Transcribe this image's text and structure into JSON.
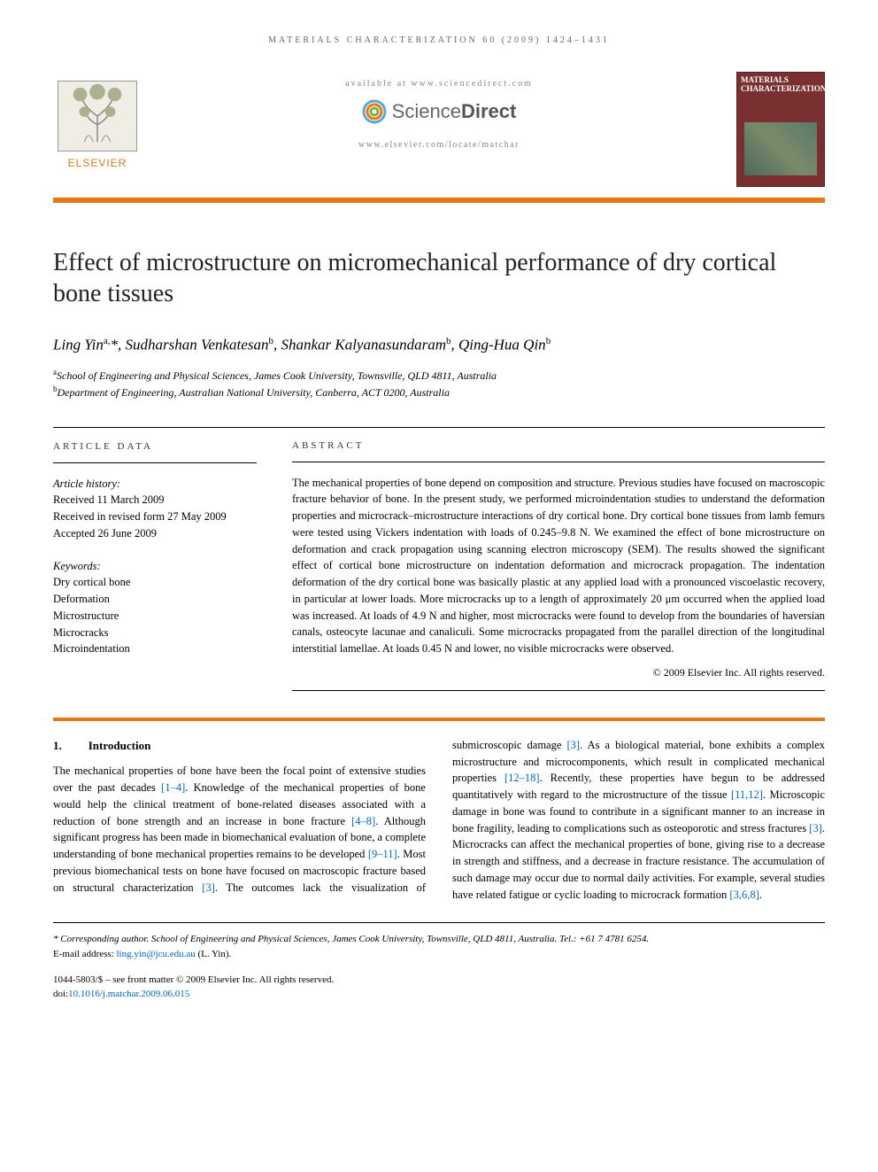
{
  "running_head": "MATERIALS CHARACTERIZATION 60 (2009) 1424–1431",
  "masthead": {
    "available_at": "available at www.sciencedirect.com",
    "sd_brand_light": "Science",
    "sd_brand_bold": "Direct",
    "locate": "www.elsevier.com/locate/matchar",
    "publisher": "ELSEVIER",
    "journal_cover_title": "MATERIALS CHARACTERIZATION"
  },
  "colors": {
    "accent": "#e67817",
    "link": "#0066cc",
    "cover_bg": "#7a3030"
  },
  "article": {
    "title": "Effect of microstructure on micromechanical performance of dry cortical bone tissues",
    "authors_html": "Ling Yin<sup>a,</sup>*, Sudharshan Venkatesan<sup>b</sup>, Shankar Kalyanasundaram<sup>b</sup>, Qing-Hua Qin<sup>b</sup>",
    "affiliations": [
      {
        "sup": "a",
        "text": "School of Engineering and Physical Sciences, James Cook University, Townsville, QLD 4811, Australia"
      },
      {
        "sup": "b",
        "text": "Department of Engineering, Australian National University, Canberra, ACT 0200, Australia"
      }
    ]
  },
  "article_data": {
    "head": "ARTICLE DATA",
    "history_label": "Article history:",
    "received": "Received 11 March 2009",
    "revised": "Received in revised form 27 May 2009",
    "accepted": "Accepted 26 June 2009",
    "keywords_label": "Keywords:",
    "keywords": [
      "Dry cortical bone",
      "Deformation",
      "Microstructure",
      "Microcracks",
      "Microindentation"
    ]
  },
  "abstract": {
    "head": "ABSTRACT",
    "text": "The mechanical properties of bone depend on composition and structure. Previous studies have focused on macroscopic fracture behavior of bone. In the present study, we performed microindentation studies to understand the deformation properties and microcrack–microstructure interactions of dry cortical bone. Dry cortical bone tissues from lamb femurs were tested using Vickers indentation with loads of 0.245–9.8 N. We examined the effect of bone microstructure on deformation and crack propagation using scanning electron microscopy (SEM). The results showed the significant effect of cortical bone microstructure on indentation deformation and microcrack propagation. The indentation deformation of the dry cortical bone was basically plastic at any applied load with a pronounced viscoelastic recovery, in particular at lower loads. More microcracks up to a length of approximately 20 μm occurred when the applied load was increased. At loads of 4.9 N and higher, most microcracks were found to develop from the boundaries of haversian canals, osteocyte lacunae and canaliculi. Some microcracks propagated from the parallel direction of the longitudinal interstitial lamellae. At loads 0.45 N and lower, no visible microcracks were observed.",
    "copyright": "© 2009 Elsevier Inc. All rights reserved."
  },
  "section": {
    "num": "1.",
    "title": "Introduction"
  },
  "body_col1": "The mechanical properties of bone have been the focal point of extensive studies over the past decades [1–4]. Knowledge of the mechanical properties of bone would help the clinical treatment of bone-related diseases associated with a reduction of bone strength and an increase in bone fracture [4–8]. Although significant progress has been made in biomechanical evaluation of bone, a complete understanding of bone mechanical properties remains to be developed [9–11]. Most previous biomechanical tests on bone have focused on macroscopic fracture based on structural characterization [3]. The outcomes lack the visualization of submicroscopic",
  "body_col2": "damage [3]. As a biological material, bone exhibits a complex microstructure and microcomponents, which result in complicated mechanical properties [12–18]. Recently, these properties have begun to be addressed quantitatively with regard to the microstructure of the tissue [11,12]. Microscopic damage in bone was found to contribute in a significant manner to an increase in bone fragility, leading to complications such as osteoporotic and stress fractures [3]. Microcracks can affect the mechanical properties of bone, giving rise to a decrease in strength and stiffness, and a decrease in fracture resistance. The accumulation of such damage may occur due to normal daily activities. For example, several studies have related fatigue or cyclic loading to microcrack formation [3,6,8].",
  "refs": {
    "r1_4": "[1–4]",
    "r4_8": "[4–8]",
    "r9_11": "[9–11]",
    "r3a": "[3]",
    "r3b": "[3]",
    "r12_18": "[12–18]",
    "r11_12": "[11,12]",
    "r3c": "[3]",
    "r3_6_8": "[3,6,8]"
  },
  "footnotes": {
    "corresponding": "* Corresponding author. School of Engineering and Physical Sciences, James Cook University, Townsville, QLD 4811, Australia. Tel.: +61 7 4781 6254.",
    "email_label": "E-mail address: ",
    "email": "ling.yin@jcu.edu.au",
    "email_who": " (L. Yin).",
    "issn_line": "1044-5803/$ – see front matter © 2009 Elsevier Inc. All rights reserved.",
    "doi_label": "doi:",
    "doi": "10.1016/j.matchar.2009.06.015"
  }
}
